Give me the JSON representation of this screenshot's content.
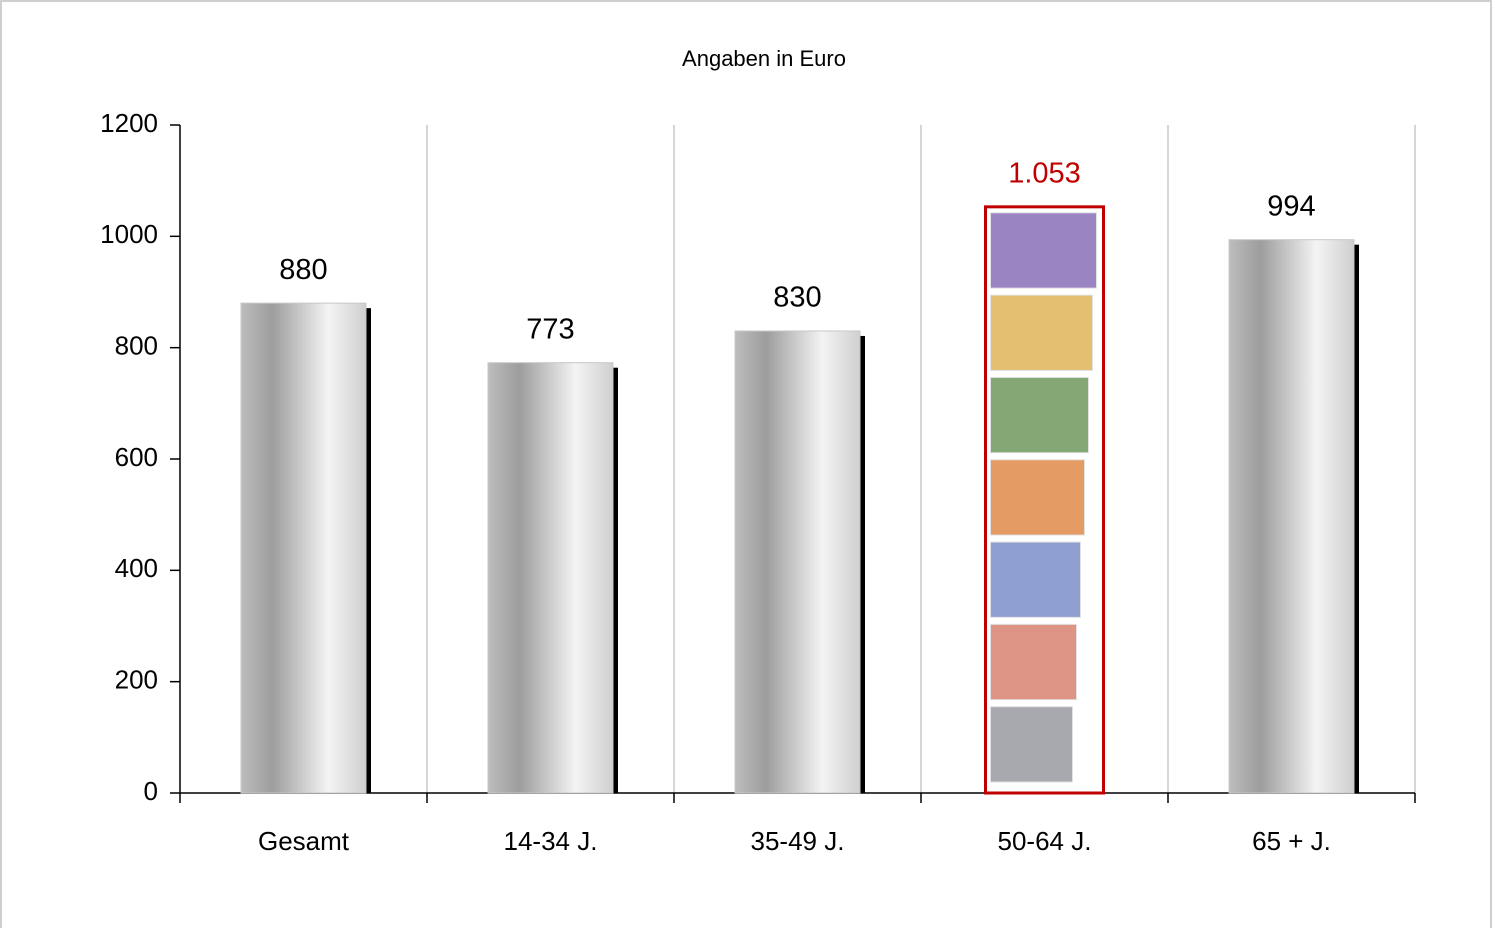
{
  "chart_data": {
    "type": "bar",
    "title": "Angaben in Euro",
    "categories": [
      "Gesamt",
      "14-34 J.",
      "35-49 J.",
      "50-64 J.",
      "65 + J."
    ],
    "values": [
      880,
      773,
      830,
      1053,
      994
    ],
    "value_labels": [
      "880",
      "773",
      "830",
      "1.053",
      "994"
    ],
    "colors": [
      "#c8c8c8",
      "#c8c8c8",
      "#c8c8c8",
      "#c00000",
      "#c8c8c8"
    ],
    "label_colors": [
      "#000000",
      "#000000",
      "#000000",
      "#c00000",
      "#000000"
    ],
    "ylim": [
      0,
      1200
    ],
    "yticks": [
      0,
      200,
      400,
      600,
      800,
      1000,
      1200
    ]
  }
}
